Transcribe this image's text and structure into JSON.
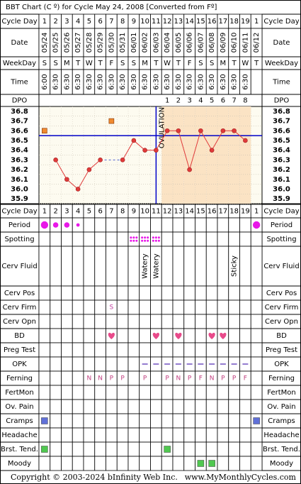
{
  "chart_data": {
    "type": "bbt",
    "title": "BBT Chart (C º) for Cycle May 24, 2008  [Converted from Fº]",
    "cycle_day_label": "Cycle Day",
    "categories": [
      "1",
      "2",
      "3",
      "4",
      "5",
      "6",
      "7",
      "8",
      "9",
      "10",
      "11",
      "12",
      "13",
      "14",
      "15",
      "16",
      "17",
      "18",
      "19",
      "1"
    ],
    "date_label": "Date",
    "dates": [
      "05/24",
      "05/25",
      "05/26",
      "05/27",
      "05/28",
      "05/29",
      "05/30",
      "05/31",
      "06/01",
      "06/02",
      "06/03",
      "06/04",
      "06/05",
      "06/06",
      "06/07",
      "06/08",
      "06/09",
      "06/10",
      "06/11",
      "06/12"
    ],
    "weekday_label": "WeekDay",
    "weekdays": [
      "S",
      "S",
      "M",
      "T",
      "W",
      "T",
      "F",
      "S",
      "S",
      "M",
      "T",
      "W",
      "T",
      "F",
      "S",
      "S",
      "M",
      "T",
      "W",
      "T"
    ],
    "time_label": "Time",
    "times": [
      "6:00",
      "6:30",
      "6:30",
      "6:30",
      "6:30",
      "6:30",
      "6:30",
      "6:30",
      "6:30",
      "6:30",
      "6:30",
      "6:30",
      "6:30",
      "6:30",
      "6:30",
      "6:30",
      "6:30",
      "6:30",
      "6:30",
      null
    ],
    "dpo_label": "DPO",
    "dpo": [
      null,
      null,
      null,
      null,
      null,
      null,
      null,
      null,
      null,
      null,
      null,
      1,
      2,
      3,
      4,
      5,
      6,
      7,
      8,
      null
    ],
    "ovulation_label": "OVULATION",
    "ovulation_day": 11,
    "coverline": 36.55,
    "coverline_color": "#0000c8",
    "post_ovulation_color": "#fbe3c4",
    "pre_ovulation_color": "#fdfbf0",
    "series": [
      {
        "color": "#e03a3a",
        "values": [
          null,
          36.3,
          36.1,
          36.0,
          36.2,
          36.3,
          null,
          36.3,
          36.5,
          36.4,
          36.4,
          36.6,
          36.6,
          36.2,
          36.6,
          36.4,
          36.6,
          36.6,
          36.5,
          null
        ]
      }
    ],
    "excluded": {
      "color": "#f08a30",
      "values": [
        36.6,
        null,
        null,
        null,
        null,
        null,
        36.7,
        null,
        null,
        null,
        null,
        null,
        null,
        null,
        null,
        null,
        null,
        null,
        null,
        null
      ]
    },
    "ylim": [
      35.85,
      36.85
    ],
    "yticks": [
      36.8,
      36.7,
      36.6,
      36.5,
      36.4,
      36.3,
      36.2,
      36.1,
      {
        "value": 36.0,
        "label": "36.0"
      },
      35.9
    ],
    "observations": [
      {
        "label": "Period",
        "mark": "dot",
        "color": "#e818e8",
        "values": [
          3,
          2,
          2,
          1,
          null,
          null,
          null,
          null,
          null,
          null,
          null,
          null,
          null,
          null,
          null,
          null,
          null,
          null,
          null,
          3
        ]
      },
      {
        "label": "Spotting",
        "mark": "spots",
        "color": "#e818e8",
        "values": [
          null,
          null,
          null,
          null,
          null,
          null,
          null,
          null,
          true,
          true,
          true,
          null,
          null,
          null,
          null,
          null,
          null,
          null,
          null,
          null
        ]
      },
      {
        "label": "Cerv Fluid",
        "mark": "vtext",
        "color": "#000000",
        "values": [
          null,
          null,
          null,
          null,
          null,
          null,
          null,
          null,
          null,
          "Watery",
          "Watery",
          null,
          null,
          null,
          null,
          null,
          null,
          "Sticky",
          null,
          null
        ]
      },
      {
        "label": "Cerv Pos",
        "mark": "text",
        "color": "#c040a0",
        "values": [
          null,
          null,
          null,
          null,
          null,
          null,
          null,
          null,
          null,
          null,
          null,
          null,
          null,
          null,
          null,
          null,
          null,
          null,
          null,
          null
        ]
      },
      {
        "label": "Cerv Firm",
        "mark": "text",
        "color": "#c040a0",
        "values": [
          null,
          null,
          null,
          null,
          null,
          null,
          "S",
          null,
          null,
          null,
          null,
          null,
          null,
          null,
          null,
          null,
          null,
          null,
          null,
          null
        ]
      },
      {
        "label": "Cerv Opn",
        "mark": "text",
        "color": "#c040a0",
        "values": [
          null,
          null,
          null,
          null,
          null,
          null,
          null,
          null,
          null,
          null,
          null,
          null,
          null,
          null,
          null,
          null,
          null,
          null,
          null,
          null
        ]
      },
      {
        "label": "BD",
        "mark": "heart",
        "color": "#e84a8a",
        "values": [
          null,
          null,
          null,
          null,
          null,
          null,
          true,
          null,
          null,
          null,
          true,
          null,
          true,
          null,
          null,
          true,
          true,
          null,
          null,
          null
        ]
      },
      {
        "label": "Preg Test",
        "mark": "text",
        "color": "#c040a0",
        "values": [
          null,
          null,
          null,
          null,
          null,
          null,
          null,
          null,
          null,
          null,
          null,
          null,
          null,
          null,
          null,
          null,
          null,
          null,
          null,
          null
        ]
      },
      {
        "label": "OPK",
        "mark": "dash",
        "color": "#7050c0",
        "values": [
          null,
          null,
          null,
          null,
          null,
          null,
          null,
          null,
          null,
          true,
          true,
          true,
          true,
          true,
          true,
          true,
          true,
          true,
          true,
          null
        ]
      },
      {
        "label": "Ferning",
        "mark": "text",
        "color": "#c04080",
        "values": [
          null,
          null,
          null,
          null,
          "N",
          "N",
          "P",
          "P",
          null,
          "P",
          null,
          "P",
          "N",
          "P",
          "F",
          "N",
          "P",
          "P",
          "F",
          null
        ]
      },
      {
        "label": "FertMon",
        "mark": "text",
        "color": "#c040a0",
        "values": [
          null,
          null,
          null,
          null,
          null,
          null,
          null,
          null,
          null,
          null,
          null,
          null,
          null,
          null,
          null,
          null,
          null,
          null,
          null,
          null
        ]
      },
      {
        "label": "Ov. Pain",
        "mark": "text",
        "color": "#c040a0",
        "values": [
          null,
          null,
          null,
          null,
          null,
          null,
          null,
          null,
          null,
          null,
          null,
          null,
          null,
          null,
          null,
          null,
          null,
          null,
          null,
          null
        ]
      },
      {
        "label": "Cramps",
        "mark": "square",
        "color": "#6070d8",
        "values": [
          true,
          null,
          null,
          null,
          null,
          null,
          null,
          null,
          null,
          null,
          null,
          null,
          null,
          null,
          null,
          null,
          null,
          null,
          null,
          true
        ]
      },
      {
        "label": "Headache",
        "mark": "square",
        "color": "#6070d8",
        "values": [
          null,
          null,
          null,
          null,
          null,
          null,
          null,
          null,
          null,
          null,
          null,
          null,
          null,
          null,
          null,
          null,
          null,
          null,
          null,
          null
        ]
      },
      {
        "label": "Brst. Tend.",
        "mark": "square",
        "color": "#50c850",
        "values": [
          true,
          null,
          null,
          null,
          null,
          null,
          null,
          null,
          null,
          null,
          null,
          true,
          null,
          null,
          null,
          null,
          null,
          null,
          null,
          null
        ]
      },
      {
        "label": "Moody",
        "mark": "square",
        "color": "#50c850",
        "values": [
          null,
          null,
          null,
          null,
          null,
          null,
          null,
          null,
          null,
          null,
          null,
          null,
          null,
          null,
          true,
          true,
          null,
          null,
          null,
          null
        ]
      }
    ],
    "copyright": "Copyright © 2003-2024 bInfinity Web Inc.",
    "website": "www.MyMonthlyCycles.com"
  }
}
